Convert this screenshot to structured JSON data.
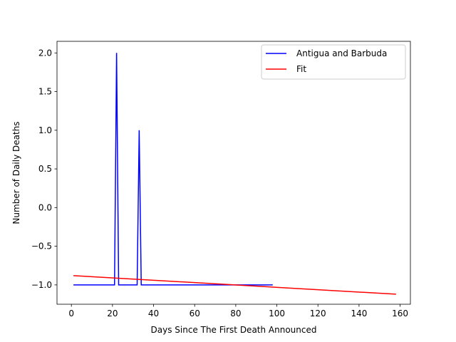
{
  "chart_data": {
    "type": "line",
    "xlabel": "Days Since The First Death Announced",
    "ylabel": "Number of Daily Deaths",
    "xlim": [
      -7,
      165
    ],
    "ylim": [
      -1.25,
      2.15
    ],
    "xticks": [
      0,
      20,
      40,
      60,
      80,
      100,
      120,
      140,
      160
    ],
    "yticks": [
      -1.0,
      -0.5,
      0.0,
      0.5,
      1.0,
      1.5,
      2.0
    ],
    "xtick_labels": [
      "0",
      "20",
      "40",
      "60",
      "80",
      "100",
      "120",
      "140",
      "160"
    ],
    "ytick_labels": [
      "−1.0",
      "−0.5",
      "0.0",
      "0.5",
      "1.0",
      "1.5",
      "2.0"
    ],
    "grid": false,
    "legend_position": "top-right",
    "series": [
      {
        "name": "Antigua and Barbuda",
        "color": "#0000ff",
        "x": [
          1,
          21,
          22,
          23,
          32,
          33,
          34,
          98
        ],
        "y": [
          -1,
          -1,
          2,
          -1,
          -1,
          1,
          -1,
          -1
        ]
      },
      {
        "name": "Fit",
        "color": "#ff0000",
        "x": [
          1,
          158
        ],
        "y": [
          -0.88,
          -1.12
        ]
      }
    ]
  }
}
